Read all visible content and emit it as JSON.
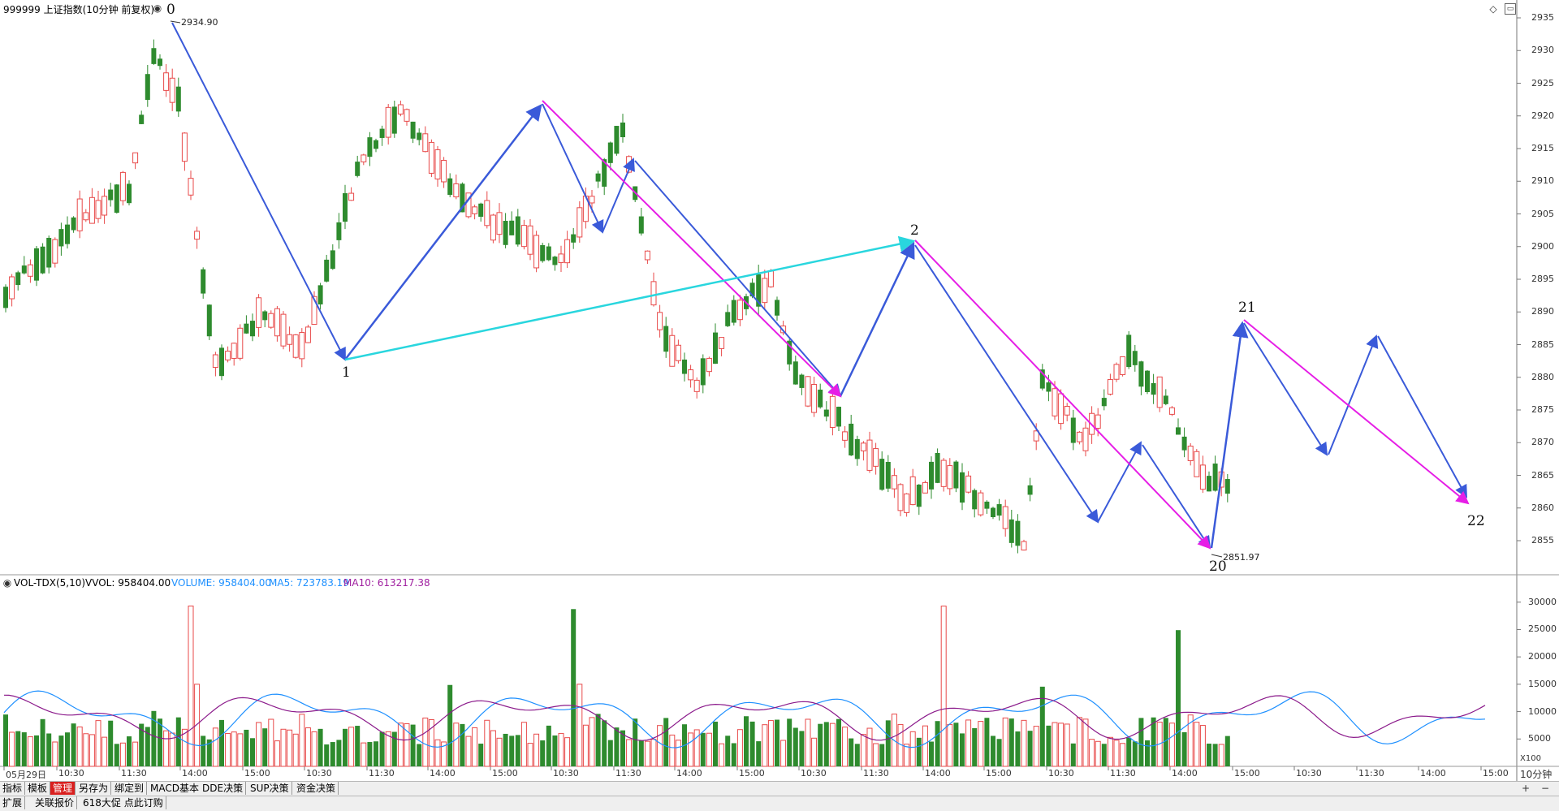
{
  "main_header": {
    "title": "999999 上证指数(10分钟 前复权)",
    "toggle_icon": "collapse-circle-icon"
  },
  "vol_header": {
    "name": "VOL-TDX(5,10)",
    "vvol": "VVOL: 958404.00",
    "volume": "VOLUME: 958404.00",
    "ma5": "MA5: 723783.19",
    "ma10": "MA10: 613217.38"
  },
  "price_axis": [
    "2935",
    "2930",
    "2925",
    "2920",
    "2915",
    "2910",
    "2905",
    "2900",
    "2895",
    "2890",
    "2885",
    "2880",
    "2875",
    "2870",
    "2865",
    "2860",
    "2855"
  ],
  "vol_axis": [
    "30000",
    "25000",
    "20000",
    "15000",
    "10000",
    "5000"
  ],
  "vol_unit": "X100",
  "time_axis": [
    "05月29日",
    "10:30",
    "11:30",
    "14:00",
    "15:00",
    "10:30",
    "11:30",
    "14:00",
    "15:00",
    "10:30",
    "11:30",
    "14:00",
    "15:00",
    "10:30",
    "11:30",
    "14:00",
    "15:00",
    "10:30",
    "11:30",
    "14:00",
    "15:00",
    "10:30",
    "11:30",
    "14:00",
    "15:00"
  ],
  "period_label": "10分钟",
  "annotations": {
    "wave_labels": [
      "0",
      "1",
      "2",
      "20",
      "21",
      "22"
    ],
    "high_note": "2934.90",
    "low_note": "2851.97"
  },
  "bottom_tabs": {
    "row1": [
      "指标",
      "模板",
      "管理",
      "另存为",
      "绑定到",
      "MACD基本",
      "DDE决策",
      "SUP决策",
      "资金决策"
    ],
    "active": "管理",
    "row2": [
      "扩展",
      "关联报价",
      "618大促 点此订购"
    ]
  },
  "controls": {
    "zoom_in": "+",
    "zoom_out": "−",
    "diamond_icon": "diamond-icon",
    "panel_icon": "panel-toggle-icon"
  },
  "colors": {
    "up": "#e84a4a",
    "down": "#2e8b2e",
    "arrow_blue": "#3a5ad9",
    "arrow_magenta": "#e61ee6",
    "arrow_cyan": "#29d6de",
    "ma5": "#1e90ff",
    "ma10": "#8b1a8b"
  },
  "chart_data": {
    "type": "candlestick",
    "ylim": [
      2850,
      2935
    ],
    "waves": [
      {
        "label": "0",
        "value": 2934.9
      },
      {
        "label": "1",
        "value": 2882
      },
      {
        "label": "2",
        "value": 2900.5
      },
      {
        "label": "20",
        "value": 2851.97
      },
      {
        "label": "21",
        "value": 2888
      },
      {
        "label": "22",
        "value": 2860
      }
    ]
  }
}
